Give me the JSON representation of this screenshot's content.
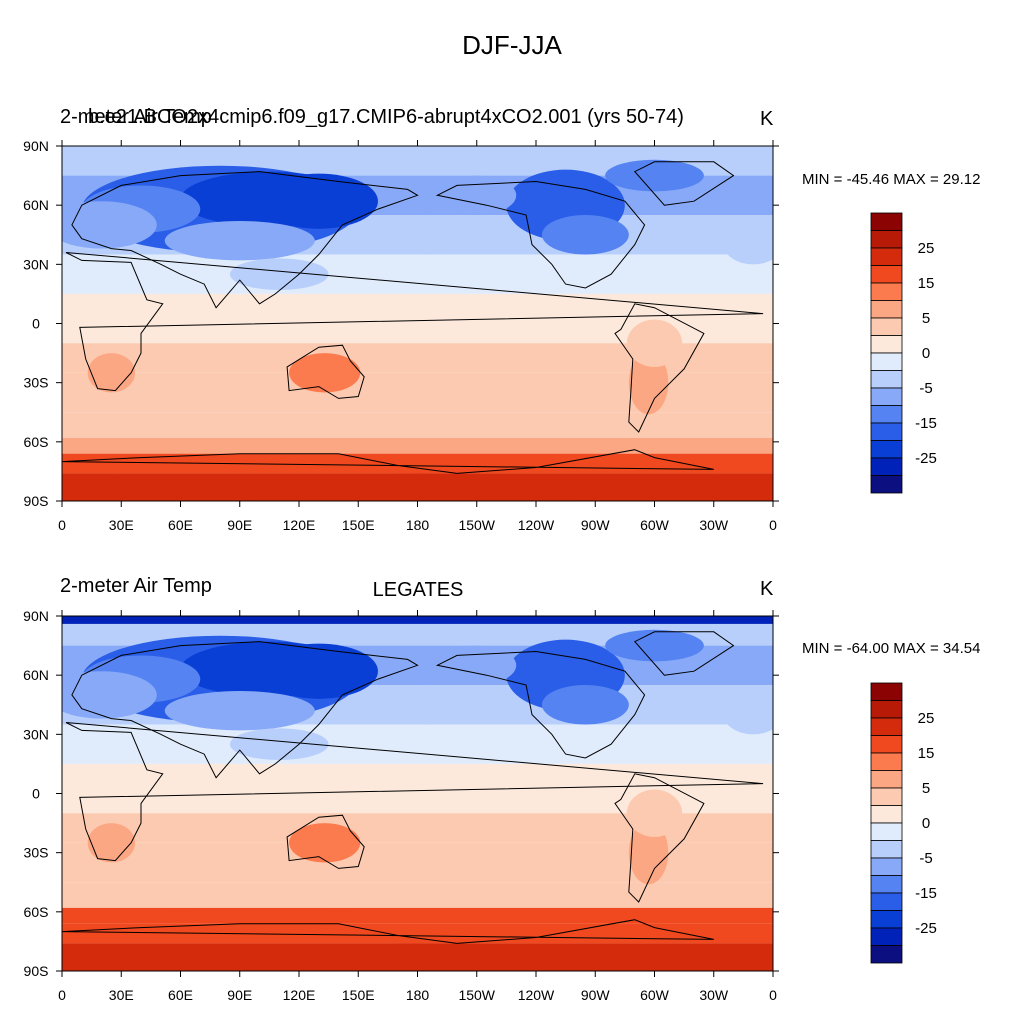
{
  "figure": {
    "title": "DJF-JJA"
  },
  "colors": {
    "levels": [
      -30,
      -25,
      -20,
      -15,
      -10,
      -5,
      0,
      5,
      10,
      15,
      20,
      25,
      30
    ],
    "palette": [
      "#0c0f80",
      "#0022b8",
      "#0a3fd6",
      "#2a5ee8",
      "#5583f2",
      "#87a9f7",
      "#b8cffb",
      "#e0ecfc",
      "#fde9db",
      "#fccab0",
      "#fca784",
      "#fb7a4e",
      "#f0481f",
      "#d42b0d",
      "#b81a08",
      "#8b0303"
    ],
    "legend_labels": [
      "25",
      "15",
      "5",
      "0",
      "-5",
      "-15",
      "-25"
    ],
    "coast": "#000000"
  },
  "axes": {
    "lat_labels": [
      "90N",
      "60N",
      "30N",
      "0",
      "30S",
      "60S",
      "90S"
    ],
    "lon_labels": [
      "0",
      "30E",
      "60E",
      "90E",
      "120E",
      "150E",
      "180",
      "150W",
      "120W",
      "90W",
      "60W",
      "30W",
      "0"
    ]
  },
  "panels": [
    {
      "left_title_a": "2-meter Air Temp",
      "left_title_b": "b.e21.BCO2x4cmip6.f09_g17.CMIP6-abrupt4xCO2.001 (yrs 50-74)",
      "center_title": "",
      "units": "K",
      "minmax": "MIN = -45.46 MAX =  29.12"
    },
    {
      "left_title_a": "2-meter Air Temp",
      "left_title_b": "",
      "center_title": "LEGATES",
      "units": "K",
      "minmax": "MIN = -64.00 MAX =  34.54"
    }
  ]
}
